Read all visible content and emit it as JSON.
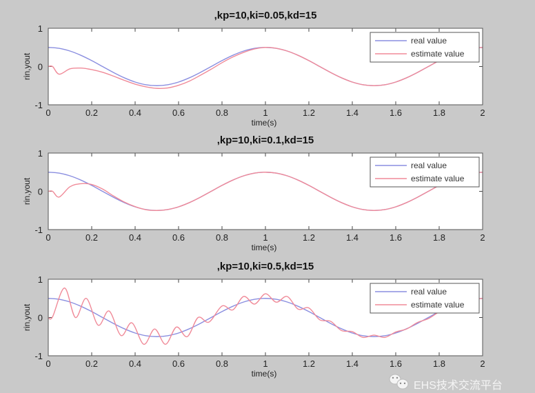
{
  "colors": {
    "background": "#c9c9c9",
    "axes": "#ffffff",
    "real": "#8a8ee0",
    "estimate": "#f08a98"
  },
  "watermark": {
    "text": "EHS技术交流平台",
    "icon": "wechat-icon"
  },
  "chart_data": [
    {
      "type": "line",
      "title": ",kp=10,ki=0.05,kd=15",
      "xlabel": "time(s)",
      "ylabel": "rin,yout",
      "xlim": [
        0,
        2
      ],
      "ylim": [
        -1,
        1
      ],
      "xticks": [
        "0",
        "0.2",
        "0.4",
        "0.6",
        "0.8",
        "1",
        "1.2",
        "1.4",
        "1.6",
        "1.8",
        "2"
      ],
      "yticks": [
        "-1",
        "0",
        "1"
      ],
      "legend": {
        "placement": "top-right",
        "entries": [
          "real value",
          "estimate value"
        ]
      },
      "series": [
        {
          "name": "real value",
          "x": [
            0,
            0.05,
            0.1,
            0.15,
            0.2,
            0.25,
            0.3,
            0.35,
            0.4,
            0.45,
            0.5,
            0.55,
            0.6,
            0.65,
            0.7,
            0.75,
            0.8,
            0.85,
            0.9,
            0.95,
            1,
            1.05,
            1.1,
            1.15,
            1.2,
            1.25,
            1.3,
            1.35,
            1.4,
            1.45,
            1.5,
            1.55,
            1.6,
            1.65,
            1.7,
            1.75,
            1.8,
            1.85,
            1.9,
            1.95,
            2
          ],
          "y": [
            0.5,
            0.476,
            0.405,
            0.294,
            0.155,
            0,
            -0.155,
            -0.294,
            -0.405,
            -0.476,
            -0.5,
            -0.476,
            -0.405,
            -0.294,
            -0.155,
            0,
            0.155,
            0.294,
            0.405,
            0.476,
            0.5,
            0.476,
            0.405,
            0.294,
            0.155,
            0,
            -0.155,
            -0.294,
            -0.405,
            -0.476,
            -0.5,
            -0.476,
            -0.405,
            -0.294,
            -0.155,
            0,
            0.155,
            0.294,
            0.405,
            0.476,
            0.5
          ]
        },
        {
          "name": "estimate value",
          "x": [
            0,
            0.02,
            0.05,
            0.1,
            0.15,
            0.2,
            0.25,
            0.3,
            0.35,
            0.4,
            0.45,
            0.5,
            0.55,
            0.6,
            0.65,
            0.7,
            0.75,
            0.8,
            0.85,
            0.9,
            0.95,
            1,
            1.05,
            1.1,
            1.15,
            1.2,
            1.25,
            1.3,
            1.35,
            1.4,
            1.45,
            1.5,
            1.55,
            1.6,
            1.65,
            1.7,
            1.75,
            1.8,
            1.85,
            1.9,
            1.95,
            2
          ],
          "y": [
            0,
            0,
            -0.2,
            -0.06,
            -0.04,
            -0.08,
            -0.15,
            -0.25,
            -0.36,
            -0.46,
            -0.53,
            -0.57,
            -0.56,
            -0.49,
            -0.38,
            -0.23,
            -0.07,
            0.1,
            0.25,
            0.37,
            0.46,
            0.5,
            0.476,
            0.405,
            0.294,
            0.155,
            0,
            -0.155,
            -0.294,
            -0.405,
            -0.476,
            -0.5,
            -0.476,
            -0.405,
            -0.294,
            -0.155,
            0,
            0.155,
            0.294,
            0.405,
            0.476,
            0.5
          ]
        }
      ]
    },
    {
      "type": "line",
      "title": ",kp=10,ki=0.1,kd=15",
      "xlabel": "time(s)",
      "ylabel": "rin,yout",
      "xlim": [
        0,
        2
      ],
      "ylim": [
        -1,
        1
      ],
      "xticks": [
        "0",
        "0.2",
        "0.4",
        "0.6",
        "0.8",
        "1",
        "1.2",
        "1.4",
        "1.6",
        "1.8",
        "2"
      ],
      "yticks": [
        "-1",
        "0",
        "1"
      ],
      "legend": {
        "placement": "top-right",
        "entries": [
          "real value",
          "estimate value"
        ]
      },
      "series": [
        {
          "name": "real value",
          "x": [
            0,
            0.05,
            0.1,
            0.15,
            0.2,
            0.25,
            0.3,
            0.35,
            0.4,
            0.45,
            0.5,
            0.55,
            0.6,
            0.65,
            0.7,
            0.75,
            0.8,
            0.85,
            0.9,
            0.95,
            1,
            1.05,
            1.1,
            1.15,
            1.2,
            1.25,
            1.3,
            1.35,
            1.4,
            1.45,
            1.5,
            1.55,
            1.6,
            1.65,
            1.7,
            1.75,
            1.8,
            1.85,
            1.9,
            1.95,
            2
          ],
          "y": [
            0.5,
            0.476,
            0.405,
            0.294,
            0.155,
            0,
            -0.155,
            -0.294,
            -0.405,
            -0.476,
            -0.5,
            -0.476,
            -0.405,
            -0.294,
            -0.155,
            0,
            0.155,
            0.294,
            0.405,
            0.476,
            0.5,
            0.476,
            0.405,
            0.294,
            0.155,
            0,
            -0.155,
            -0.294,
            -0.405,
            -0.476,
            -0.5,
            -0.476,
            -0.405,
            -0.294,
            -0.155,
            0,
            0.155,
            0.294,
            0.405,
            0.476,
            0.5
          ]
        },
        {
          "name": "estimate value",
          "x": [
            0,
            0.02,
            0.05,
            0.1,
            0.15,
            0.2,
            0.25,
            0.3,
            0.35,
            0.4,
            0.45,
            0.5,
            0.55,
            0.6,
            0.65,
            0.7,
            0.75,
            0.8,
            0.85,
            0.9,
            0.95,
            1,
            1.05,
            1.1,
            1.15,
            1.2,
            1.25,
            1.3,
            1.35,
            1.4,
            1.45,
            1.5,
            1.55,
            1.6,
            1.65,
            1.7,
            1.75,
            1.8,
            1.85,
            1.9,
            1.95,
            2
          ],
          "y": [
            0,
            0,
            -0.15,
            0.12,
            0.2,
            0.18,
            0.06,
            -0.12,
            -0.28,
            -0.4,
            -0.48,
            -0.5,
            -0.476,
            -0.405,
            -0.294,
            -0.155,
            0,
            0.155,
            0.294,
            0.405,
            0.476,
            0.5,
            0.476,
            0.405,
            0.294,
            0.155,
            0,
            -0.155,
            -0.294,
            -0.405,
            -0.476,
            -0.5,
            -0.476,
            -0.405,
            -0.294,
            -0.155,
            0,
            0.155,
            0.294,
            0.405,
            0.476,
            0.5
          ]
        }
      ]
    },
    {
      "type": "line",
      "title": ",kp=10,ki=0.5,kd=15",
      "xlabel": "time(s)",
      "ylabel": "rin,yout",
      "xlim": [
        0,
        2
      ],
      "ylim": [
        -1,
        1
      ],
      "xticks": [
        "0",
        "0.2",
        "0.4",
        "0.6",
        "0.8",
        "1",
        "1.2",
        "1.4",
        "1.6",
        "1.8",
        "2"
      ],
      "yticks": [
        "-1",
        "0",
        "1"
      ],
      "legend": {
        "placement": "top-right",
        "entries": [
          "real value",
          "estimate value"
        ]
      },
      "series": [
        {
          "name": "real value",
          "x": [
            0,
            0.05,
            0.1,
            0.15,
            0.2,
            0.25,
            0.3,
            0.35,
            0.4,
            0.45,
            0.5,
            0.55,
            0.6,
            0.65,
            0.7,
            0.75,
            0.8,
            0.85,
            0.9,
            0.95,
            1,
            1.05,
            1.1,
            1.15,
            1.2,
            1.25,
            1.3,
            1.35,
            1.4,
            1.45,
            1.5,
            1.55,
            1.6,
            1.65,
            1.7,
            1.75,
            1.8,
            1.85,
            1.9,
            1.95,
            2
          ],
          "y": [
            0.5,
            0.476,
            0.405,
            0.294,
            0.155,
            0,
            -0.155,
            -0.294,
            -0.405,
            -0.476,
            -0.5,
            -0.476,
            -0.405,
            -0.294,
            -0.155,
            0,
            0.155,
            0.294,
            0.405,
            0.476,
            0.5,
            0.476,
            0.405,
            0.294,
            0.155,
            0,
            -0.155,
            -0.294,
            -0.405,
            -0.476,
            -0.5,
            -0.476,
            -0.405,
            -0.294,
            -0.155,
            0,
            0.155,
            0.294,
            0.405,
            0.476,
            0.5
          ]
        },
        {
          "name": "estimate value",
          "x": [
            0,
            0.02,
            0.075,
            0.125,
            0.175,
            0.23,
            0.28,
            0.335,
            0.385,
            0.44,
            0.49,
            0.54,
            0.59,
            0.64,
            0.69,
            0.74,
            0.8,
            0.85,
            0.9,
            0.95,
            1,
            1.05,
            1.1,
            1.15,
            1.2,
            1.25,
            1.3,
            1.35,
            1.4,
            1.45,
            1.5,
            1.55,
            1.6,
            1.65,
            1.7,
            1.75,
            1.8,
            1.85,
            1.9,
            1.95,
            2
          ],
          "y": [
            0,
            0.02,
            0.77,
            0,
            0.5,
            -0.2,
            0.17,
            -0.47,
            -0.14,
            -0.7,
            -0.3,
            -0.7,
            -0.25,
            -0.5,
            0,
            -0.12,
            0.3,
            0.2,
            0.55,
            0.35,
            0.62,
            0.4,
            0.55,
            0.22,
            0.25,
            -0.06,
            -0.1,
            -0.34,
            -0.37,
            -0.52,
            -0.46,
            -0.52,
            -0.38,
            -0.3,
            -0.13,
            -0.03,
            0.15,
            0.3,
            0.42,
            0.47,
            0.5
          ]
        }
      ]
    }
  ]
}
